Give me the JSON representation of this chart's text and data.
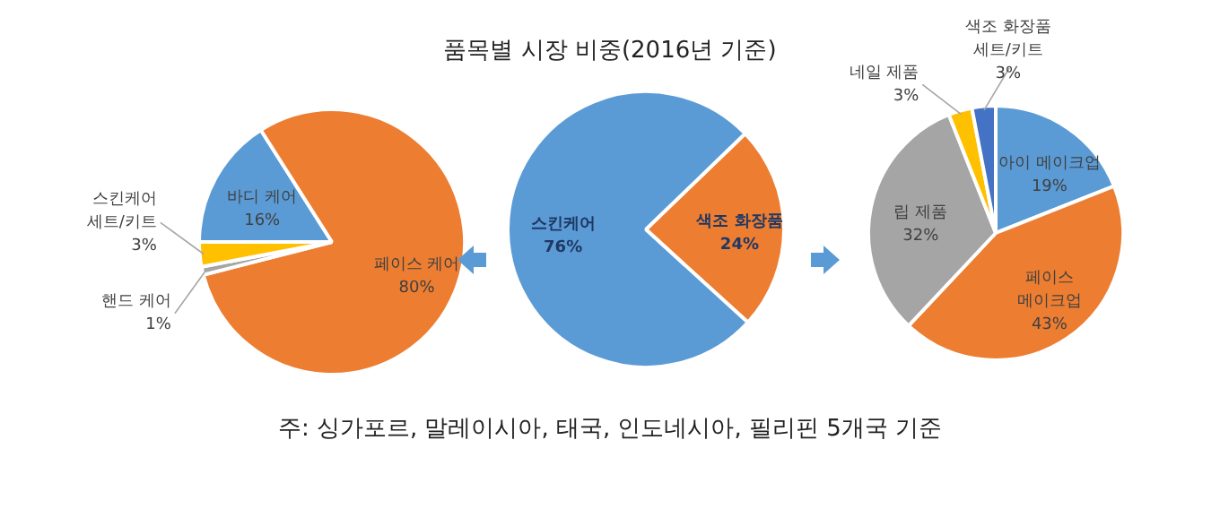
{
  "chart_data": [
    {
      "type": "pie",
      "categories": [
        "바디 케어",
        "페이스 케어",
        "핸드 케어",
        "스킨케어 세트/키트"
      ],
      "values": [
        16,
        80,
        1,
        3
      ],
      "colors": [
        "#5b9bd5",
        "#ed7d31",
        "#a5a5a5",
        "#ffc000"
      ],
      "value_labels": [
        "16%",
        "80%",
        "1%",
        "3%"
      ]
    },
    {
      "type": "pie",
      "title": "품목별 시장 비중(2016년 기준)",
      "categories": [
        "색조 화장품",
        "스킨케어"
      ],
      "values": [
        24,
        76
      ],
      "colors": [
        "#ed7d31",
        "#5b9bd5"
      ],
      "value_labels": [
        "24%",
        "76%"
      ],
      "annotations": [
        "주: 싱가포르, 말레이시아, 태국, 인도네시아, 필리핀 5개국 기준"
      ]
    },
    {
      "type": "pie",
      "categories": [
        "아이 메이크업",
        "페이스 메이크업",
        "립 제품",
        "네일 제품",
        "색조 화장품 세트/키트"
      ],
      "values": [
        19,
        43,
        32,
        3,
        3
      ],
      "colors": [
        "#5b9bd5",
        "#ed7d31",
        "#a5a5a5",
        "#ffc000",
        "#4472c4"
      ],
      "value_labels": [
        "19%",
        "43%",
        "32%",
        "3%",
        "3%"
      ]
    }
  ]
}
